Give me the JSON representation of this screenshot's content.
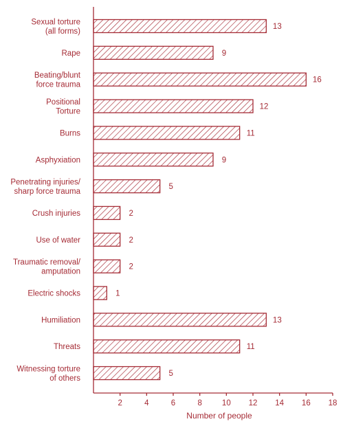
{
  "chart_data": {
    "type": "bar",
    "orientation": "horizontal",
    "categories": [
      [
        "Sexual torture",
        "(all forms)"
      ],
      [
        "Rape"
      ],
      [
        "Beating/blunt",
        "force trauma"
      ],
      [
        "Positional",
        "Torture"
      ],
      [
        "Burns"
      ],
      [
        "Asphyxiation"
      ],
      [
        "Penetrating injuries/",
        "sharp force trauma"
      ],
      [
        "Crush injuries"
      ],
      [
        "Use of water"
      ],
      [
        "Traumatic removal/",
        "amputation"
      ],
      [
        "Electric shocks"
      ],
      [
        "Humiliation"
      ],
      [
        "Threats"
      ],
      [
        "Witnessing torture",
        "of others"
      ]
    ],
    "values": [
      13,
      9,
      16,
      12,
      11,
      9,
      5,
      2,
      2,
      2,
      1,
      13,
      11,
      5
    ],
    "xlabel": "Number of people",
    "ylabel": "",
    "xlim": [
      0,
      18
    ],
    "xticks": [
      2,
      4,
      6,
      8,
      10,
      12,
      14,
      16,
      18
    ],
    "grid": false,
    "colors": {
      "accent": "#a52b35",
      "hatch": "#a52b35",
      "background": "#ffffff"
    }
  }
}
